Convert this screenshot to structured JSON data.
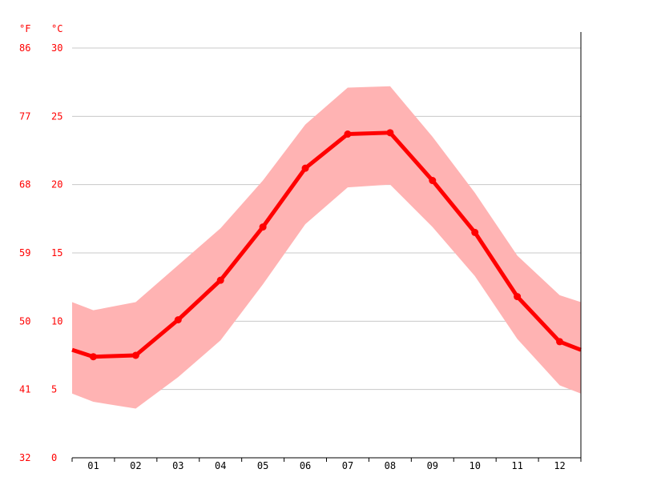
{
  "chart_data": {
    "type": "line",
    "title": "",
    "categories": [
      "01",
      "02",
      "03",
      "04",
      "05",
      "06",
      "07",
      "08",
      "09",
      "10",
      "11",
      "12"
    ],
    "series": [
      {
        "role": "average",
        "values": [
          7.4,
          7.5,
          10.1,
          13.0,
          16.9,
          21.2,
          23.7,
          23.8,
          20.3,
          16.5,
          11.8,
          8.5
        ],
        "color": "#ff0000"
      },
      {
        "role": "range",
        "low": [
          4.1,
          3.6,
          5.9,
          8.6,
          12.7,
          17.1,
          19.8,
          20.0,
          16.9,
          13.3,
          8.7,
          5.3
        ],
        "high": [
          10.8,
          11.4,
          14.1,
          16.8,
          20.3,
          24.4,
          27.1,
          27.2,
          23.5,
          19.4,
          14.8,
          11.9
        ],
        "color": "#ffb3b3"
      }
    ],
    "edge_values": {
      "average": [
        7.9,
        7.9
      ],
      "low": [
        4.7,
        4.7
      ],
      "high": [
        11.4,
        11.4
      ]
    },
    "y_left_celsius": {
      "unit_label": "°C",
      "ticks": [
        "0",
        "5",
        "10",
        "15",
        "20",
        "25",
        "30"
      ],
      "ylim": [
        0,
        30
      ]
    },
    "y_left_fahrenheit": {
      "unit_label": "°F",
      "ticks": [
        "32",
        "41",
        "50",
        "59",
        "68",
        "77",
        "86"
      ]
    },
    "xlabel": "",
    "ylabel": "",
    "grid": true,
    "legend": "none"
  }
}
